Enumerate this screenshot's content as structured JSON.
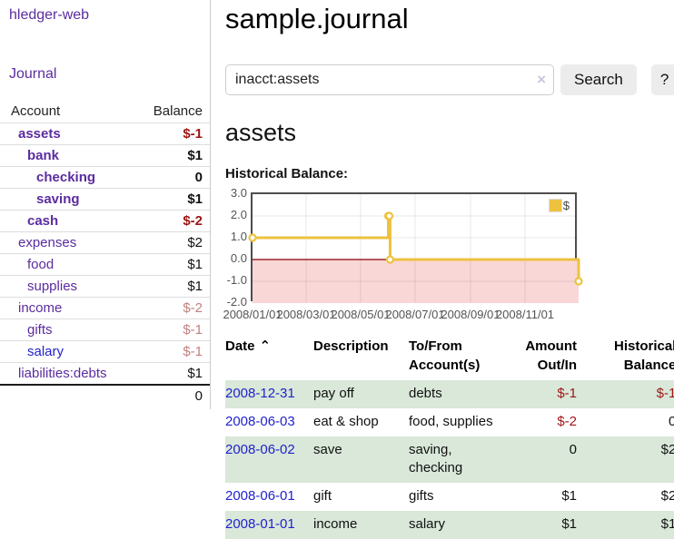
{
  "sidebar": {
    "brand": "hledger-web",
    "journal_link": "Journal",
    "accounts_header": {
      "account": "Account",
      "balance": "Balance"
    },
    "accounts": [
      {
        "label": "assets",
        "balance": "$-1",
        "level": 1,
        "bold": true,
        "link": "purple",
        "balance_color": "dark-red"
      },
      {
        "label": "bank",
        "balance": "$1",
        "level": 2,
        "bold": true,
        "link": "purple",
        "balance_color": "black"
      },
      {
        "label": "checking",
        "balance": "0",
        "level": 3,
        "bold": true,
        "link": "purple",
        "balance_color": "black"
      },
      {
        "label": "saving",
        "balance": "$1",
        "level": 3,
        "bold": true,
        "link": "purple",
        "balance_color": "black"
      },
      {
        "label": "cash",
        "balance": "$-2",
        "level": 2,
        "bold": true,
        "link": "purple",
        "balance_color": "dark-red"
      },
      {
        "label": "expenses",
        "balance": "$2",
        "level": 1,
        "bold": false,
        "link": "purple",
        "balance_color": "black"
      },
      {
        "label": "food",
        "balance": "$1",
        "level": 2,
        "bold": false,
        "link": "purple",
        "balance_color": "black"
      },
      {
        "label": "supplies",
        "balance": "$1",
        "level": 2,
        "bold": false,
        "link": "purple",
        "balance_color": "black"
      },
      {
        "label": "income",
        "balance": "$-2",
        "level": 1,
        "bold": false,
        "link": "purple",
        "balance_color": "rose"
      },
      {
        "label": "gifts",
        "balance": "$-1",
        "level": 2,
        "bold": false,
        "link": "purple",
        "balance_color": "rose"
      },
      {
        "label": "salary",
        "balance": "$-1",
        "level": 2,
        "bold": false,
        "link": "blue",
        "balance_color": "rose"
      },
      {
        "label": "liabilities:debts",
        "balance": "$1",
        "level": 1,
        "bold": false,
        "link": "purple",
        "balance_color": "black"
      }
    ],
    "total": "0"
  },
  "main": {
    "title": "sample.journal",
    "search": {
      "value": "inacct:assets",
      "clear_icon": "×",
      "button": "Search",
      "help": "?"
    },
    "account_title": "assets",
    "chart_title": "Historical Balance:"
  },
  "chart_data": {
    "type": "line",
    "step": true,
    "series": [
      {
        "name": "$",
        "color": "#edc240",
        "points": [
          [
            "2008-01-01",
            1.0
          ],
          [
            "2008-06-01",
            2.0
          ],
          [
            "2008-06-02",
            2.0
          ],
          [
            "2008-06-03",
            0.0
          ],
          [
            "2008-12-31",
            -1.0
          ]
        ]
      }
    ],
    "x_ticks": [
      "2008/01/01",
      "2008/03/01",
      "2008/05/01",
      "2008/07/01",
      "2008/09/01",
      "2008/11/01"
    ],
    "y_ticks": [
      3.0,
      2.0,
      1.0,
      0.0,
      -1.0,
      -2.0
    ],
    "ylim": [
      -2.0,
      3.0
    ],
    "xlim": [
      "2008-01-01",
      "2008-12-31"
    ],
    "legend": {
      "label": "$",
      "position": "top-right"
    },
    "negative_fill": "#f9d7d7",
    "zero_line_color": "#8b0000",
    "grid": true
  },
  "register": {
    "headers": {
      "date": "Date",
      "sort_icon": "⌃",
      "description": "Description",
      "account": "To/From Account(s)",
      "amount": "Amount Out/In",
      "balance": "Historical Balance"
    },
    "rows": [
      {
        "date": "2008-12-31",
        "description": "pay off",
        "accounts": "debts",
        "amount": "$-1",
        "amount_negative": true,
        "balance": "$-1",
        "balance_negative": true
      },
      {
        "date": "2008-06-03",
        "description": "eat & shop",
        "accounts": "food, supplies",
        "amount": "$-2",
        "amount_negative": true,
        "balance": "0",
        "balance_negative": false
      },
      {
        "date": "2008-06-02",
        "description": "save",
        "accounts": "saving, checking",
        "amount": "0",
        "amount_negative": false,
        "balance": "$2",
        "balance_negative": false
      },
      {
        "date": "2008-06-01",
        "description": "gift",
        "accounts": "gifts",
        "amount": "$1",
        "amount_negative": false,
        "balance": "$2",
        "balance_negative": false
      },
      {
        "date": "2008-01-01",
        "description": "income",
        "accounts": "salary",
        "amount": "$1",
        "amount_negative": false,
        "balance": "$1",
        "balance_negative": false
      }
    ]
  }
}
